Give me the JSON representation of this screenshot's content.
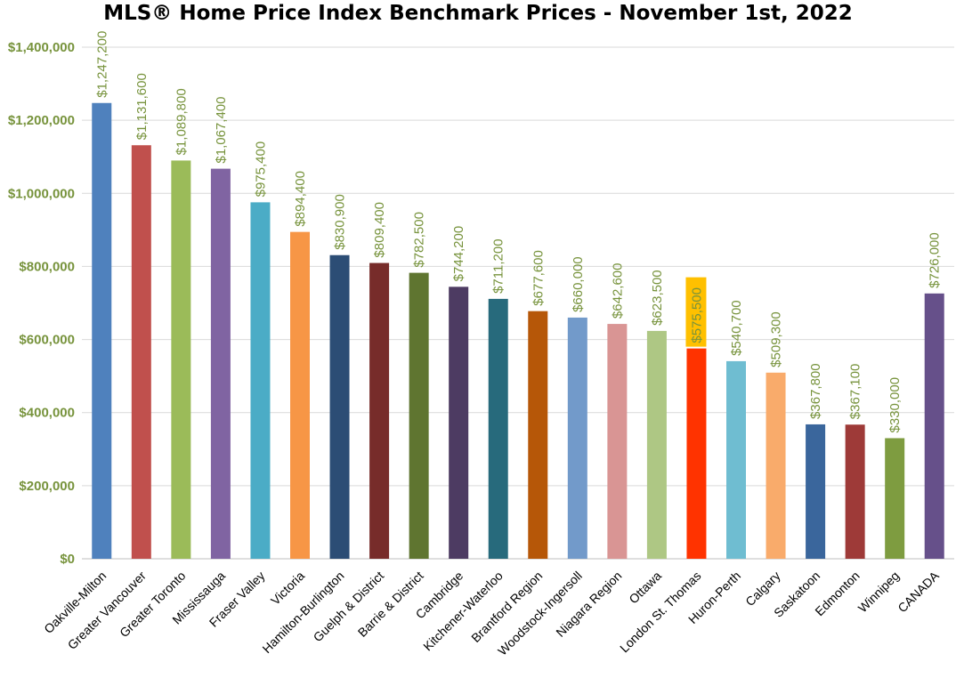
{
  "chart_data": {
    "type": "bar",
    "title": "MLS® Home Price Index Benchmark Prices - November 1st, 2022",
    "xlabel": "",
    "ylabel": "",
    "ylim": [
      0,
      1400000
    ],
    "yticks": [
      0,
      200000,
      400000,
      600000,
      800000,
      1000000,
      1200000,
      1400000
    ],
    "ytick_labels": [
      "$0",
      "$200,000",
      "$400,000",
      "$600,000",
      "$800,000",
      "$1,000,000",
      "$1,200,000",
      "$1,400,000"
    ],
    "grid": true,
    "legend": "none",
    "highlighted_category": "London St. Thomas",
    "highlight_label_bg": "#ffc000",
    "categories": [
      "Oakville-Milton",
      "Greater Vancouver",
      "Greater Toronto",
      "Mississauga",
      "Fraser Valley",
      "Victoria",
      "Hamilton-Burlington",
      "Guelph & District",
      "Barrie & District",
      "Cambridge",
      "Kitchener-Waterloo",
      "Brantford Region",
      "Woodstock-Ingersoll",
      "Niagara Region",
      "Ottawa",
      "London St. Thomas",
      "Huron-Perth",
      "Calgary",
      "Saskatoon",
      "Edmonton",
      "Winnipeg",
      "CANADA"
    ],
    "values": [
      1247200,
      1131600,
      1089800,
      1067400,
      975400,
      894400,
      830900,
      809400,
      782500,
      744200,
      711200,
      677600,
      660000,
      642600,
      623500,
      575500,
      540700,
      509300,
      367800,
      367100,
      330000,
      726000
    ],
    "value_labels": [
      "$1,247,200",
      "$1,131,600",
      "$1,089,800",
      "$1,067,400",
      "$975,400",
      "$894,400",
      "$830,900",
      "$809,400",
      "$782,500",
      "$744,200",
      "$711,200",
      "$677,600",
      "$660,000",
      "$642,600",
      "$623,500",
      "$575,500",
      "$540,700",
      "$509,300",
      "$367,800",
      "$367,100",
      "$330,000",
      "$726,000"
    ],
    "colors": [
      "#4f81bd",
      "#c0504d",
      "#9bbb59",
      "#8064a2",
      "#4bacc6",
      "#f79646",
      "#2c4d75",
      "#772c2a",
      "#5f7530",
      "#4d3b62",
      "#276a7c",
      "#b65708",
      "#729aca",
      "#d99594",
      "#aec784",
      "#ff3300",
      "#6fbdd1",
      "#f9ab6b",
      "#3a669c",
      "#9e3a38",
      "#7e9c40",
      "#66508a"
    ],
    "label_color": "#77933c"
  }
}
